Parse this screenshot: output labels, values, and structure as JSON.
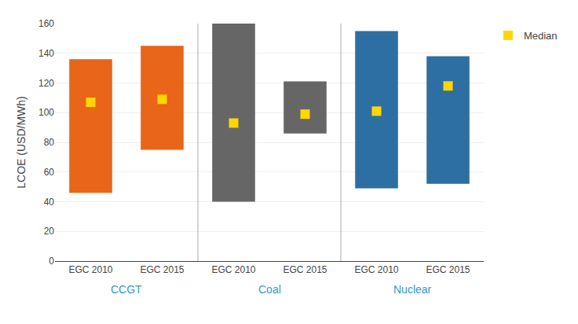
{
  "chart_data": {
    "type": "bar",
    "ylabel": "LCOE (USD/MWh)",
    "groups": [
      {
        "name": "CCGT",
        "categories": [
          "EGC 2010",
          "EGC 2015"
        ]
      },
      {
        "name": "Coal",
        "categories": [
          "EGC 2010",
          "EGC 2015"
        ]
      },
      {
        "name": "Nuclear",
        "categories": [
          "EGC 2010",
          "EGC 2015"
        ]
      }
    ],
    "group_label_color": "#3399cc",
    "lows": [
      46,
      75,
      40,
      86,
      49,
      52
    ],
    "highs": [
      136,
      145,
      160,
      121,
      155,
      138
    ],
    "colors": [
      "#E8651A",
      "#E8651A",
      "#666666",
      "#666666",
      "#2E6FA3",
      "#2E6FA3"
    ],
    "median": {
      "name": "Median",
      "values": [
        107,
        109,
        93,
        99,
        101,
        118
      ],
      "color": "#FFD700",
      "marker": "square"
    },
    "ylim": [
      0,
      160
    ],
    "yticks": [
      0,
      20,
      40,
      60,
      80,
      100,
      120,
      140,
      160
    ],
    "grid": true,
    "legend": "right"
  }
}
